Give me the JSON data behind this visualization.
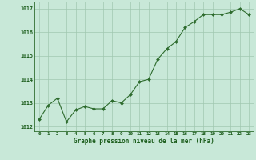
{
  "x": [
    0,
    1,
    2,
    3,
    4,
    5,
    6,
    7,
    8,
    9,
    10,
    11,
    12,
    13,
    14,
    15,
    16,
    17,
    18,
    19,
    20,
    21,
    22,
    23
  ],
  "y": [
    1012.3,
    1012.9,
    1013.2,
    1012.2,
    1012.7,
    1012.85,
    1012.75,
    1012.75,
    1013.1,
    1013.0,
    1013.35,
    1013.9,
    1014.0,
    1014.85,
    1015.3,
    1015.6,
    1016.2,
    1016.45,
    1016.75,
    1016.75,
    1016.75,
    1016.85,
    1017.0,
    1016.75
  ],
  "line_color": "#2d6b2d",
  "marker_color": "#2d6b2d",
  "bg_color": "#c8e8d8",
  "grid_color": "#a0c8b0",
  "xlabel": "Graphe pression niveau de la mer (hPa)",
  "xlabel_color": "#1a5c1a",
  "tick_color": "#1a5c1a",
  "ylim": [
    1011.8,
    1017.3
  ],
  "yticks": [
    1012,
    1013,
    1014,
    1015,
    1016,
    1017
  ],
  "xticks": [
    0,
    1,
    2,
    3,
    4,
    5,
    6,
    7,
    8,
    9,
    10,
    11,
    12,
    13,
    14,
    15,
    16,
    17,
    18,
    19,
    20,
    21,
    22,
    23
  ],
  "border_color": "#2d6b2d"
}
